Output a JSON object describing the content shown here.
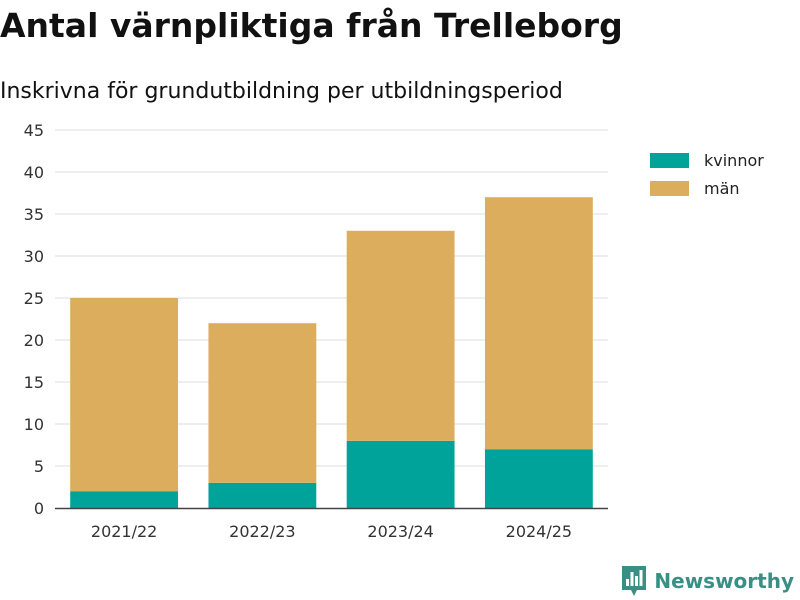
{
  "chart_data": {
    "type": "bar",
    "stacked": true,
    "title": "Antal värnpliktiga från Trelleborg",
    "subtitle": "Inskrivna för grundutbildning per utbildningsperiod",
    "xlabel": "",
    "ylabel": "",
    "categories": [
      "2021/22",
      "2022/23",
      "2023/24",
      "2024/25"
    ],
    "series": [
      {
        "name": "kvinnor",
        "color": "#00a39a",
        "values": [
          2,
          3,
          8,
          7
        ]
      },
      {
        "name": "män",
        "color": "#dbad5c",
        "values": [
          23,
          19,
          25,
          30
        ]
      }
    ],
    "ylim": [
      0,
      45
    ],
    "yticks": [
      0,
      5,
      10,
      15,
      20,
      25,
      30,
      35,
      40,
      45
    ],
    "grid": true,
    "legend_position": "top-right"
  },
  "branding": {
    "name": "Newsworthy",
    "color": "#3a8f84",
    "icon": "newsworthy-logo-icon"
  },
  "colors": {
    "gridline": "#dddddd",
    "axis": "#444444"
  }
}
